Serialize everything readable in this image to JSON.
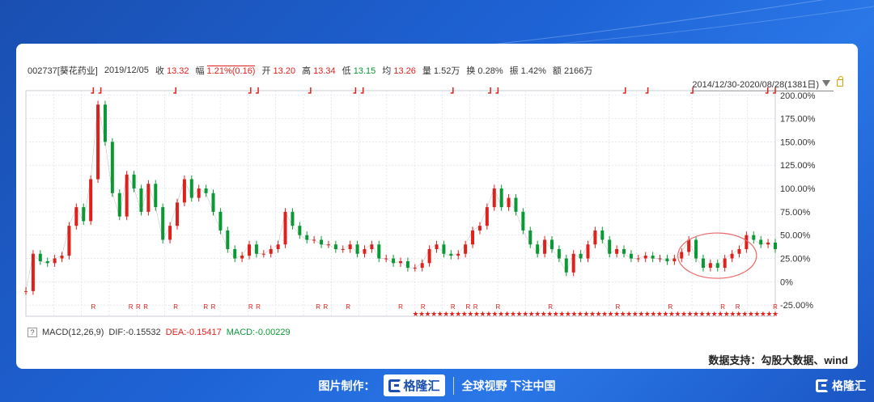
{
  "header": {
    "code": "002737[葵花药业]",
    "date": "2019/12/05",
    "close_label": "收",
    "close": "13.32",
    "change_label": "幅",
    "change": "1.21%(0.16)",
    "open_label": "开",
    "open": "13.20",
    "high_label": "高",
    "high": "13.34",
    "low_label": "低",
    "low": "13.15",
    "avg_label": "均",
    "avg": "13.26",
    "vol_label": "量",
    "vol": "1.52万",
    "turnover_label": "换",
    "turnover": "0.28%",
    "amp_label": "振",
    "amp": "1.42%",
    "amount_label": "额",
    "amount": "2166万"
  },
  "range_text": "2014/12/30-2020/08/28(1381日)",
  "macd": {
    "help": "?",
    "label": "MACD(12,26,9)",
    "dif": "DIF:-0.15532",
    "dea": "DEA:-0.15417",
    "macd": "MACD:-0.00229"
  },
  "source": "数据支持：勾股大数据、wind",
  "footer": {
    "made_by": "图片制作：",
    "brand": "格隆汇",
    "slogan": "全球视野 下注中国",
    "corner_brand": "格隆汇"
  },
  "colors": {
    "up": "#e0201b",
    "down": "#0a9a34",
    "highlight": "#e86a6a",
    "grid": "#d6dbe3"
  },
  "chart_data": {
    "type": "line",
    "title": "",
    "xlabel": "",
    "ylabel": "",
    "y_unit": "percent",
    "ylim": [
      -37,
      205
    ],
    "yticks": [
      "200.00%",
      "175.00%",
      "150.00%",
      "125.00%",
      "100.00%",
      "75.00%",
      "50.00%",
      "25.00%",
      "0%",
      "-25.00%"
    ],
    "ytick_values": [
      200,
      175,
      150,
      125,
      100,
      75,
      50,
      25,
      0,
      -25
    ],
    "grid": true,
    "x_range": [
      "2014/12/30",
      "2020/08/28"
    ],
    "series": [
      {
        "values": [
          -10,
          30,
          22,
          20,
          25,
          28,
          60,
          80,
          65,
          110,
          190,
          150,
          95,
          70,
          115,
          100,
          75,
          105,
          80,
          45,
          60,
          85,
          110,
          90,
          100,
          95,
          75,
          55,
          35,
          25,
          28,
          40,
          30,
          30,
          35,
          40,
          75,
          60,
          50,
          45,
          45,
          40,
          40,
          35,
          35,
          40,
          30,
          35,
          40,
          25,
          25,
          20,
          22,
          15,
          15,
          20,
          35,
          40,
          30,
          28,
          30,
          40,
          55,
          60,
          80,
          100,
          80,
          90,
          75,
          55,
          40,
          30,
          45,
          35,
          25,
          10,
          30,
          25,
          40,
          55,
          45,
          30,
          35,
          30,
          25,
          25,
          28,
          25,
          25,
          22,
          25,
          32,
          45,
          25,
          15,
          20,
          15,
          25,
          30,
          35,
          50,
          45,
          40,
          42,
          35
        ]
      }
    ],
    "annotations": [
      {
        "type": "ellipse",
        "note": "highlight of recent period",
        "x_from": 0.87,
        "x_to": 0.975
      }
    ],
    "markers": {
      "top_flags": [
        0.09,
        0.1,
        0.2,
        0.3,
        0.31,
        0.38,
        0.44,
        0.45,
        0.57,
        0.62,
        0.63,
        0.8,
        0.83,
        0.89,
        0.99,
        1.0
      ],
      "r_labels": [
        0.09,
        0.14,
        0.15,
        0.16,
        0.2,
        0.24,
        0.25,
        0.3,
        0.31,
        0.39,
        0.4,
        0.43,
        0.5,
        0.53,
        0.57,
        0.59,
        0.6,
        0.63,
        0.7,
        0.79,
        0.86,
        0.93,
        0.95,
        1.0
      ]
    }
  }
}
